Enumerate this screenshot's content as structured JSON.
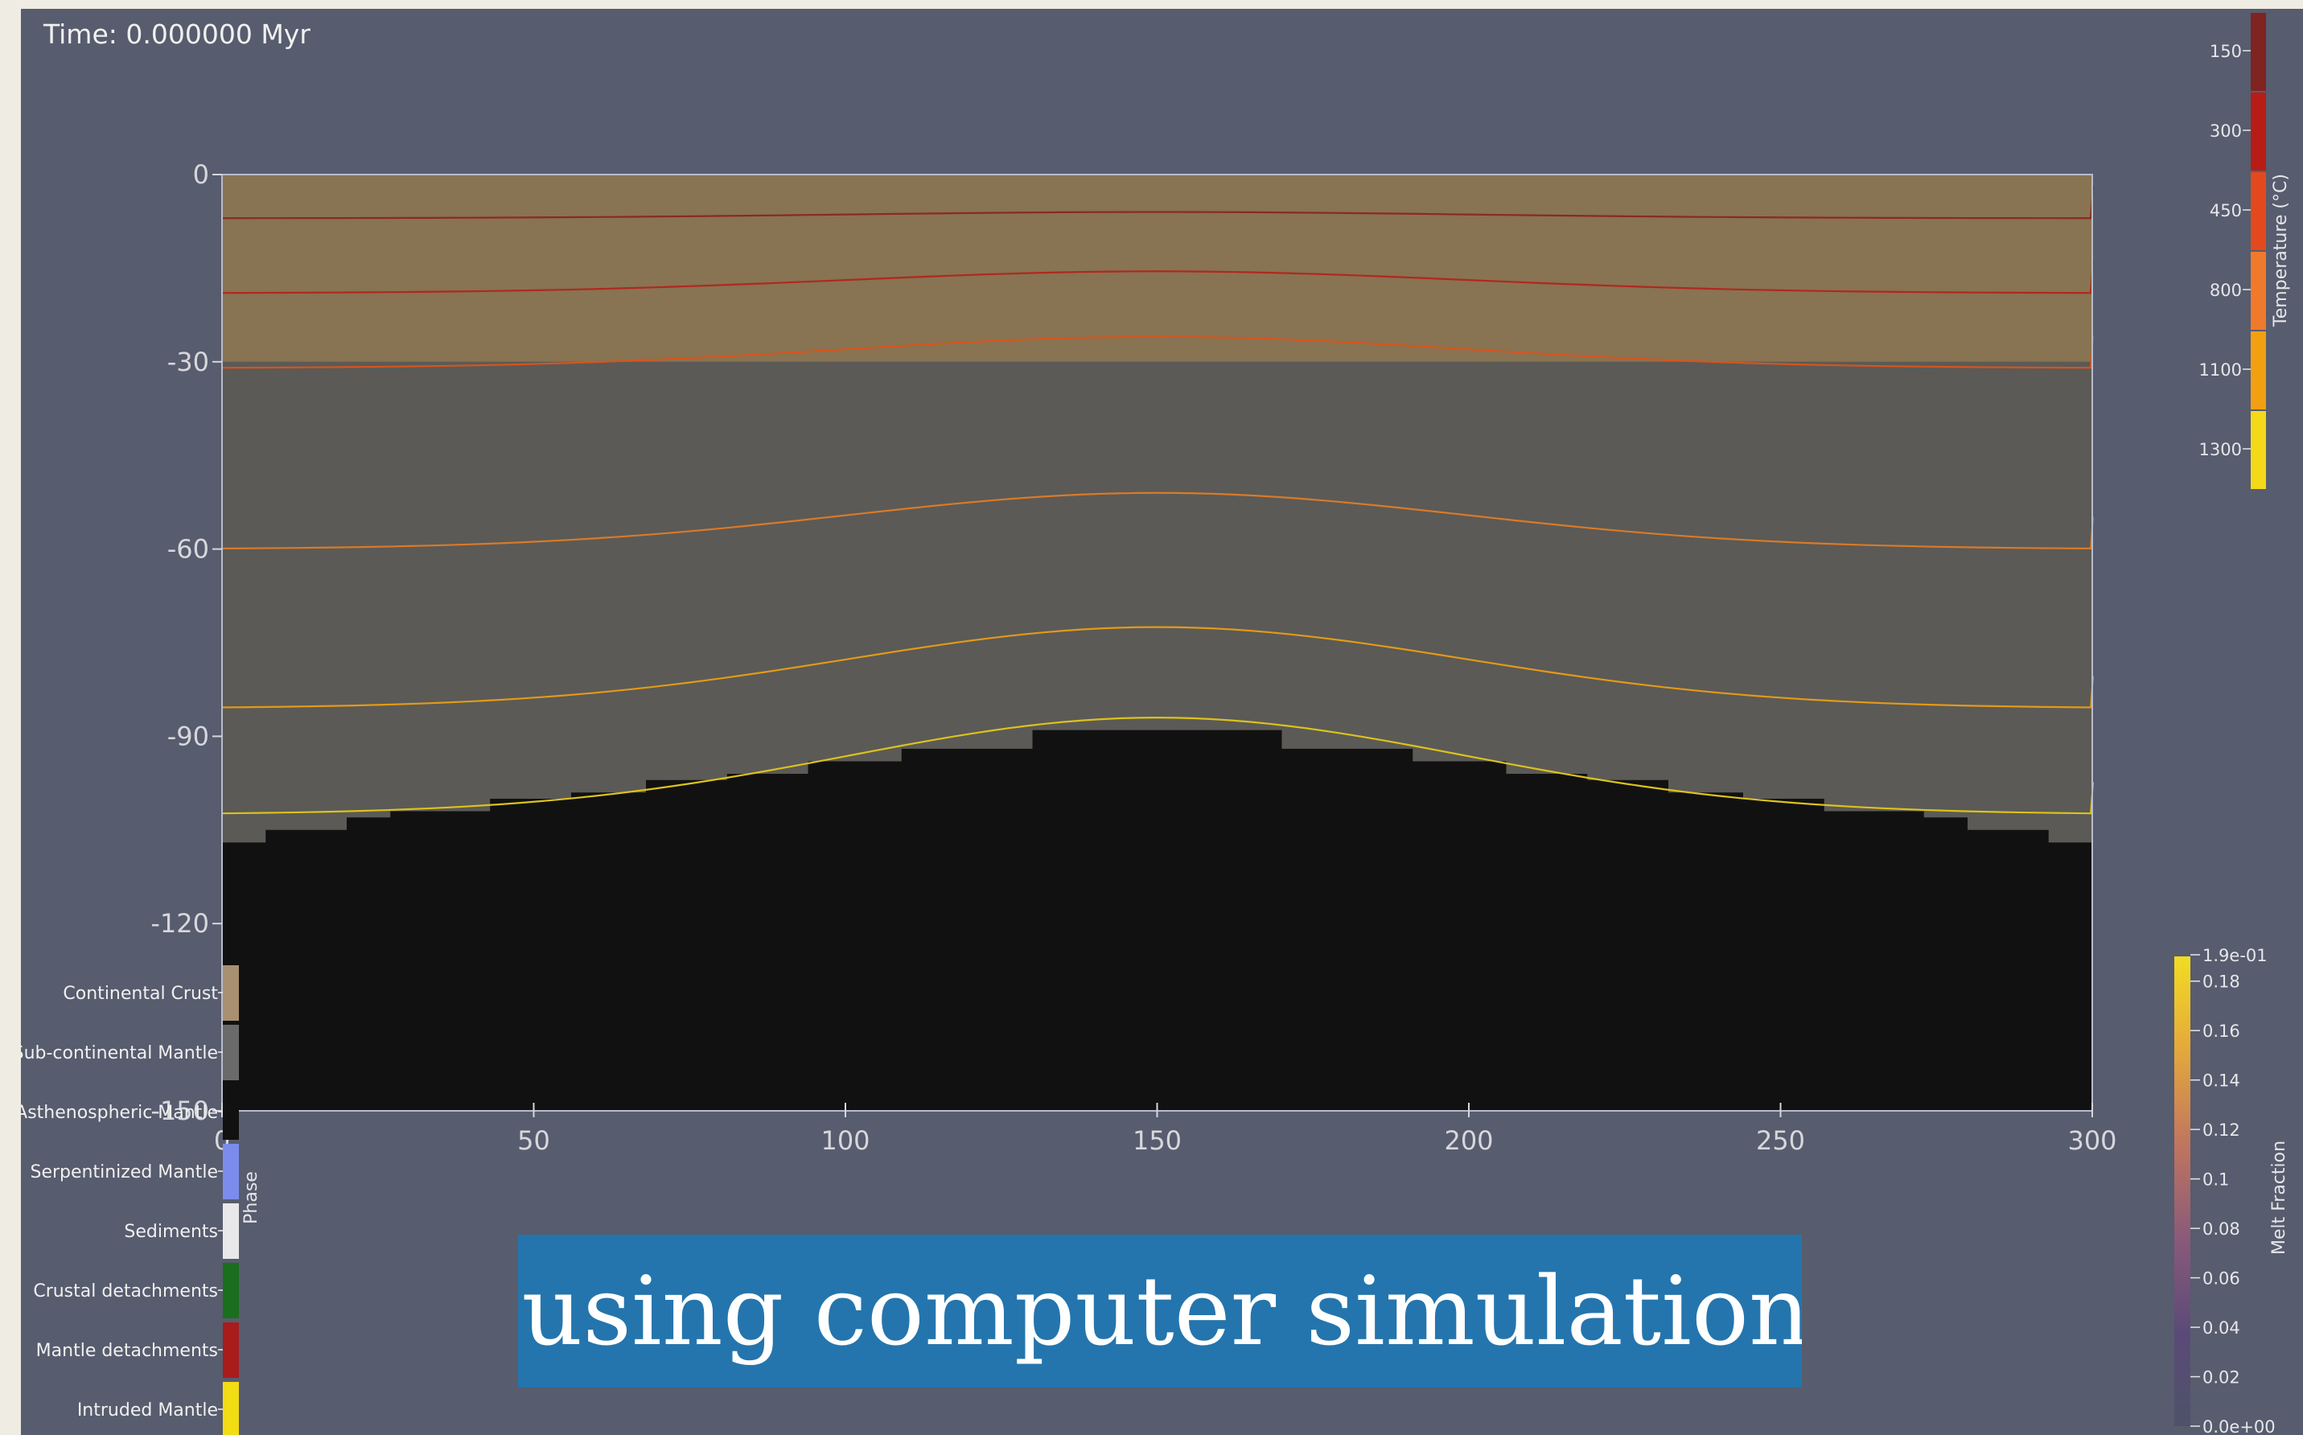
{
  "time_label": "Time: 0.000000 Myr",
  "caption": "...using computer simulations.",
  "plot": {
    "y_ticks": [
      {
        "value": 0,
        "label": "0"
      },
      {
        "value": -30,
        "label": "-30"
      },
      {
        "value": -60,
        "label": "-60"
      },
      {
        "value": -90,
        "label": "-90"
      },
      {
        "value": -120,
        "label": "-120"
      },
      {
        "value": -150,
        "label": "-150"
      }
    ],
    "x_ticks": [
      {
        "value": 0,
        "label": "0"
      },
      {
        "value": 50,
        "label": "50"
      },
      {
        "value": 100,
        "label": "100"
      },
      {
        "value": 150,
        "label": "150"
      },
      {
        "value": 200,
        "label": "200"
      },
      {
        "value": 250,
        "label": "250"
      },
      {
        "value": 300,
        "label": "300"
      }
    ],
    "x_range": [
      0,
      300
    ],
    "y_range": [
      -150,
      0
    ],
    "layers": [
      {
        "name": "Continental Crust",
        "top": 0,
        "bottom": -30,
        "color": "#887352"
      },
      {
        "name": "Sub-continental Mantle",
        "top": -30,
        "bottom": -150,
        "color": "#5b5a56"
      }
    ],
    "asthenosphere_color": "#111111",
    "asthenosphere_steps": [
      {
        "x0": 0,
        "x1": 7,
        "depth": -107
      },
      {
        "x0": 7,
        "x1": 20,
        "depth": -105
      },
      {
        "x0": 20,
        "x1": 27,
        "depth": -103
      },
      {
        "x0": 27,
        "x1": 43,
        "depth": -102
      },
      {
        "x0": 43,
        "x1": 56,
        "depth": -100
      },
      {
        "x0": 56,
        "x1": 68,
        "depth": -99
      },
      {
        "x0": 68,
        "x1": 81,
        "depth": -97
      },
      {
        "x0": 81,
        "x1": 94,
        "depth": -96
      },
      {
        "x0": 94,
        "x1": 109,
        "depth": -94
      },
      {
        "x0": 109,
        "x1": 130,
        "depth": -92
      },
      {
        "x0": 130,
        "x1": 170,
        "depth": -89
      },
      {
        "x0": 170,
        "x1": 191,
        "depth": -92
      },
      {
        "x0": 191,
        "x1": 206,
        "depth": -94
      },
      {
        "x0": 206,
        "x1": 219,
        "depth": -96
      },
      {
        "x0": 219,
        "x1": 232,
        "depth": -97
      },
      {
        "x0": 232,
        "x1": 244,
        "depth": -99
      },
      {
        "x0": 244,
        "x1": 257,
        "depth": -100
      },
      {
        "x0": 257,
        "x1": 273,
        "depth": -102
      },
      {
        "x0": 273,
        "x1": 280,
        "depth": -103
      },
      {
        "x0": 280,
        "x1": 293,
        "depth": -105
      },
      {
        "x0": 293,
        "x1": 300,
        "depth": -107
      }
    ],
    "isotherms": [
      {
        "edge": -7,
        "center": -6,
        "color": "#8a2a22"
      },
      {
        "edge": -19,
        "center": -15.5,
        "color": "#b1281e"
      },
      {
        "edge": -31,
        "center": -26,
        "color": "#d8541c"
      },
      {
        "edge": -60,
        "center": -51,
        "color": "#d97a28"
      },
      {
        "edge": -85.5,
        "center": -72.5,
        "color": "#e29a18"
      },
      {
        "edge": -102.5,
        "center": -87,
        "color": "#dcc21c"
      }
    ]
  },
  "temperature_legend": {
    "title": "Temperature (°C)",
    "entries": [
      {
        "label": "150",
        "color": "#7f2420"
      },
      {
        "label": "300",
        "color": "#b81c16"
      },
      {
        "label": "450",
        "color": "#e24a1e"
      },
      {
        "label": "800",
        "color": "#ef7a2c"
      },
      {
        "label": "1100",
        "color": "#f2a012"
      },
      {
        "label": "1300",
        "color": "#f4d81a"
      }
    ]
  },
  "melt_legend": {
    "title": "Melt Fraction",
    "top_label": "1.9e-01",
    "bottom_label": "0.0e+00",
    "ticks": [
      "0.18",
      "0.16",
      "0.14",
      "0.12",
      "0.1",
      "0.08",
      "0.06",
      "0.04",
      "0.02"
    ],
    "colors": [
      "#4e5269",
      "#5b4a78",
      "#8a5a7a",
      "#c0755f",
      "#e4a83c",
      "#f2dc22"
    ]
  },
  "phase_legend": {
    "title": "Phase",
    "entries": [
      {
        "label": "Continental Crust",
        "color": "#a89070"
      },
      {
        "label": "Sub-continental Mantle",
        "color": "#6a6a6a"
      },
      {
        "label": "Asthenospheric Mantle",
        "color": "#111111"
      },
      {
        "label": "Serpentinized Mantle",
        "color": "#7b8cec"
      },
      {
        "label": "Sediments",
        "color": "#e8e8ea"
      },
      {
        "label": "Crustal detachments",
        "color": "#1b6e1e"
      },
      {
        "label": "Mantle detachments",
        "color": "#a81c1c"
      },
      {
        "label": "Intruded Mantle",
        "color": "#f2dc14"
      }
    ]
  }
}
